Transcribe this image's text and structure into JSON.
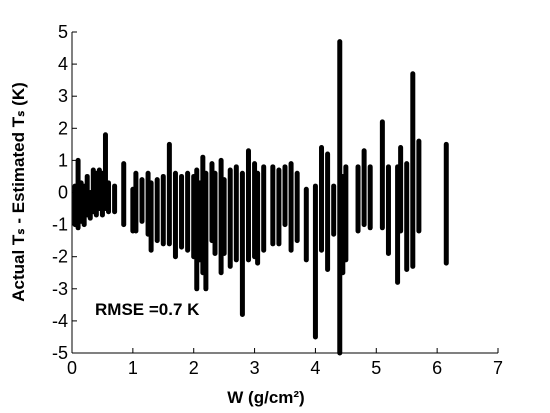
{
  "chart_data": {
    "type": "range",
    "ylabel": "Actual Tₛ - Estimated Tₛ (K)",
    "xlabel": "W (g/cm²)",
    "annotation": "RMSE =0.7 K",
    "color": "#000000",
    "xlim": [
      0,
      7
    ],
    "xticks": [
      0,
      1,
      2,
      3,
      4,
      5,
      6,
      7
    ],
    "ylim": [
      -5,
      5
    ],
    "yticks": [
      -5,
      -4,
      -3,
      -2,
      -1,
      0,
      1,
      2,
      3,
      4,
      5
    ],
    "x": [
      0.05,
      0.1,
      0.15,
      0.2,
      0.25,
      0.3,
      0.35,
      0.4,
      0.45,
      0.5,
      0.55,
      0.6,
      0.7,
      0.85,
      1.0,
      1.05,
      1.15,
      1.25,
      1.3,
      1.4,
      1.5,
      1.6,
      1.7,
      1.8,
      1.9,
      2.0,
      2.05,
      2.1,
      2.15,
      2.2,
      2.3,
      2.35,
      2.45,
      2.5,
      2.6,
      2.7,
      2.8,
      2.9,
      3.0,
      3.05,
      3.15,
      3.3,
      3.4,
      3.5,
      3.6,
      3.7,
      3.85,
      4.0,
      4.1,
      4.2,
      4.3,
      4.4,
      4.45,
      4.5,
      4.7,
      4.8,
      4.9,
      5.1,
      5.2,
      5.35,
      5.4,
      5.5,
      5.6,
      5.7,
      6.15
    ],
    "low": [
      -1.0,
      -1.1,
      -0.9,
      -1.0,
      -0.7,
      -0.8,
      -0.6,
      -0.7,
      -0.5,
      -0.7,
      -0.5,
      -0.6,
      -0.6,
      -1.0,
      -1.2,
      -1.2,
      -0.9,
      -1.3,
      -1.8,
      -1.5,
      -1.6,
      -1.6,
      -2.0,
      -1.7,
      -1.8,
      -2.0,
      -3.0,
      -2.1,
      -2.5,
      -3.0,
      -1.5,
      -1.9,
      -2.5,
      -1.9,
      -2.3,
      -2.1,
      -3.8,
      -2.1,
      -2.0,
      -2.2,
      -1.8,
      -1.6,
      -1.6,
      -1.0,
      -1.8,
      -1.5,
      -2.1,
      -4.5,
      -1.8,
      -2.4,
      -1.3,
      -5.0,
      -2.5,
      -2.1,
      -1.2,
      -1.0,
      -1.1,
      -1.1,
      -1.9,
      -2.8,
      -1.2,
      -2.4,
      -2.3,
      -1.2,
      -2.2
    ],
    "high": [
      0.2,
      1.0,
      0.3,
      0.2,
      0.5,
      0.0,
      0.7,
      0.6,
      0.7,
      0.6,
      1.8,
      0.3,
      0.2,
      0.9,
      0.1,
      0.6,
      0.4,
      0.6,
      0.3,
      0.4,
      0.5,
      1.5,
      0.6,
      0.5,
      0.6,
      0.5,
      0.7,
      0.3,
      1.1,
      0.6,
      0.9,
      0.6,
      1.0,
      0.4,
      0.7,
      0.8,
      0.6,
      1.3,
      0.9,
      0.6,
      0.8,
      0.8,
      0.7,
      0.8,
      0.9,
      0.6,
      0.1,
      0.2,
      1.4,
      1.2,
      0.2,
      4.7,
      0.5,
      0.8,
      0.8,
      1.3,
      0.8,
      2.2,
      0.8,
      0.8,
      1.4,
      0.9,
      3.7,
      1.6,
      1.5
    ]
  }
}
